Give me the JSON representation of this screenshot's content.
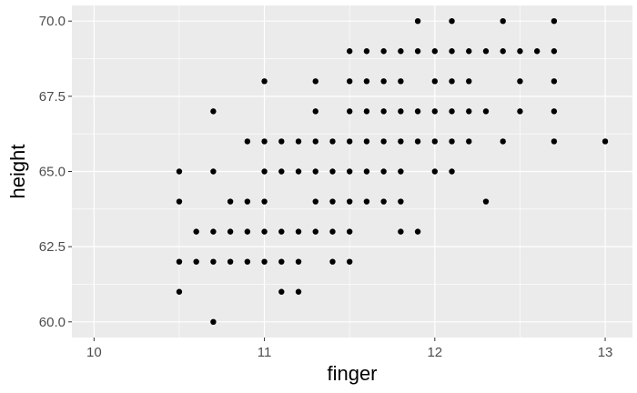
{
  "chart_data": {
    "type": "scatter",
    "title": "",
    "xlabel": "finger",
    "ylabel": "height",
    "xlim": [
      9.87,
      13.16
    ],
    "ylim": [
      59.48,
      70.52
    ],
    "x_ticks": [
      10,
      11,
      12,
      13
    ],
    "x_tick_labels": [
      "10",
      "11",
      "12",
      "13"
    ],
    "y_ticks": [
      60.0,
      62.5,
      65.0,
      67.5,
      70.0
    ],
    "y_tick_labels": [
      "60.0",
      "62.5",
      "65.0",
      "67.5",
      "70.0"
    ],
    "grid": true,
    "colors": {
      "panel": "#ebebeb",
      "grid_major": "#ffffff",
      "point": "#000000",
      "tick_text": "#4d4d4d",
      "tick_mark": "#333333"
    },
    "points": [
      [
        10.5,
        65
      ],
      [
        10.5,
        64
      ],
      [
        10.5,
        62
      ],
      [
        10.5,
        61
      ],
      [
        10.6,
        63
      ],
      [
        10.6,
        62
      ],
      [
        10.7,
        67
      ],
      [
        10.7,
        65
      ],
      [
        10.7,
        63
      ],
      [
        10.7,
        62
      ],
      [
        10.7,
        60
      ],
      [
        10.8,
        64
      ],
      [
        10.8,
        63
      ],
      [
        10.8,
        62
      ],
      [
        10.9,
        66
      ],
      [
        10.9,
        64
      ],
      [
        10.9,
        63
      ],
      [
        10.9,
        62
      ],
      [
        11.0,
        68
      ],
      [
        11.0,
        66
      ],
      [
        11.0,
        65
      ],
      [
        11.0,
        64
      ],
      [
        11.0,
        63
      ],
      [
        11.0,
        62
      ],
      [
        11.1,
        66
      ],
      [
        11.1,
        65
      ],
      [
        11.1,
        63
      ],
      [
        11.1,
        62
      ],
      [
        11.1,
        61
      ],
      [
        11.2,
        66
      ],
      [
        11.2,
        65
      ],
      [
        11.2,
        63
      ],
      [
        11.2,
        62
      ],
      [
        11.2,
        61
      ],
      [
        11.3,
        68
      ],
      [
        11.3,
        67
      ],
      [
        11.3,
        66
      ],
      [
        11.3,
        65
      ],
      [
        11.3,
        64
      ],
      [
        11.3,
        63
      ],
      [
        11.4,
        66
      ],
      [
        11.4,
        65
      ],
      [
        11.4,
        64
      ],
      [
        11.4,
        63
      ],
      [
        11.4,
        62
      ],
      [
        11.5,
        69
      ],
      [
        11.5,
        68
      ],
      [
        11.5,
        67
      ],
      [
        11.5,
        66
      ],
      [
        11.5,
        65
      ],
      [
        11.5,
        64
      ],
      [
        11.5,
        63
      ],
      [
        11.5,
        62
      ],
      [
        11.6,
        69
      ],
      [
        11.6,
        68
      ],
      [
        11.6,
        67
      ],
      [
        11.6,
        66
      ],
      [
        11.6,
        65
      ],
      [
        11.6,
        64
      ],
      [
        11.7,
        69
      ],
      [
        11.7,
        68
      ],
      [
        11.7,
        67
      ],
      [
        11.7,
        66
      ],
      [
        11.7,
        65
      ],
      [
        11.7,
        64
      ],
      [
        11.8,
        69
      ],
      [
        11.8,
        68
      ],
      [
        11.8,
        67
      ],
      [
        11.8,
        66
      ],
      [
        11.8,
        65
      ],
      [
        11.8,
        64
      ],
      [
        11.8,
        63
      ],
      [
        11.9,
        70
      ],
      [
        11.9,
        69
      ],
      [
        11.9,
        67
      ],
      [
        11.9,
        66
      ],
      [
        11.9,
        63
      ],
      [
        12.0,
        69
      ],
      [
        12.0,
        68
      ],
      [
        12.0,
        67
      ],
      [
        12.0,
        66
      ],
      [
        12.0,
        65
      ],
      [
        12.1,
        70
      ],
      [
        12.1,
        69
      ],
      [
        12.1,
        68
      ],
      [
        12.1,
        67
      ],
      [
        12.1,
        66
      ],
      [
        12.1,
        65
      ],
      [
        12.2,
        69
      ],
      [
        12.2,
        68
      ],
      [
        12.2,
        67
      ],
      [
        12.2,
        66
      ],
      [
        12.3,
        69
      ],
      [
        12.3,
        67
      ],
      [
        12.3,
        64
      ],
      [
        12.4,
        70
      ],
      [
        12.4,
        69
      ],
      [
        12.4,
        66
      ],
      [
        12.5,
        69
      ],
      [
        12.5,
        68
      ],
      [
        12.5,
        67
      ],
      [
        12.6,
        69
      ],
      [
        12.7,
        70
      ],
      [
        12.7,
        69
      ],
      [
        12.7,
        68
      ],
      [
        12.7,
        67
      ],
      [
        12.7,
        66
      ],
      [
        13.0,
        66
      ]
    ]
  }
}
